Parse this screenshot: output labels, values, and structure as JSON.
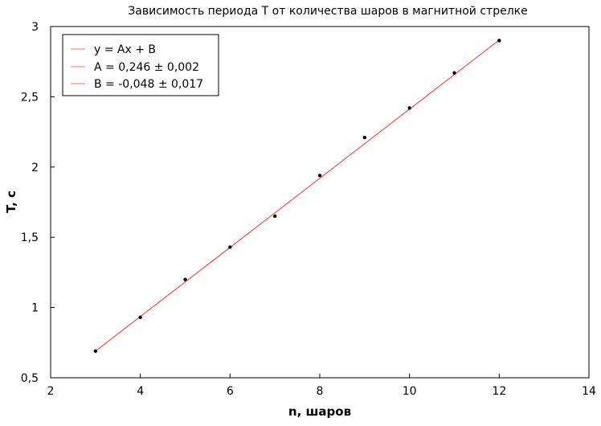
{
  "chart_data": {
    "type": "scatter",
    "title": "Зависимость периода T от количества шаров в магнитной стрелке",
    "xlabel": "n, шаров",
    "ylabel": "T, с",
    "xlim": [
      2,
      14
    ],
    "ylim": [
      0.5,
      3
    ],
    "x_ticks": [
      2,
      4,
      6,
      8,
      10,
      12,
      14
    ],
    "x_tick_labels": [
      "2",
      "4",
      "6",
      "8",
      "10",
      "12",
      "14"
    ],
    "y_ticks": [
      0.5,
      1,
      1.5,
      2,
      2.5,
      3
    ],
    "y_tick_labels": [
      "0,5",
      "1",
      "1,5",
      "2",
      "2,5",
      "3"
    ],
    "grid": false,
    "legend_position": "top-left",
    "legend": [
      "y = Ax + B",
      "A = 0,246 ± 0,002",
      "B = -0,048 ± 0,017"
    ],
    "points": {
      "x": [
        3,
        4,
        5,
        6,
        7,
        8,
        9,
        10,
        11,
        12
      ],
      "y": [
        0.69,
        0.93,
        1.2,
        1.43,
        1.65,
        1.94,
        2.21,
        2.42,
        2.67,
        2.9
      ]
    },
    "fit_line": {
      "x": [
        3,
        12
      ],
      "y": [
        0.69,
        2.904
      ]
    },
    "colors": {
      "fit_line": "#ff3030",
      "points": "#000000",
      "legend_line": "#ff7070"
    }
  }
}
